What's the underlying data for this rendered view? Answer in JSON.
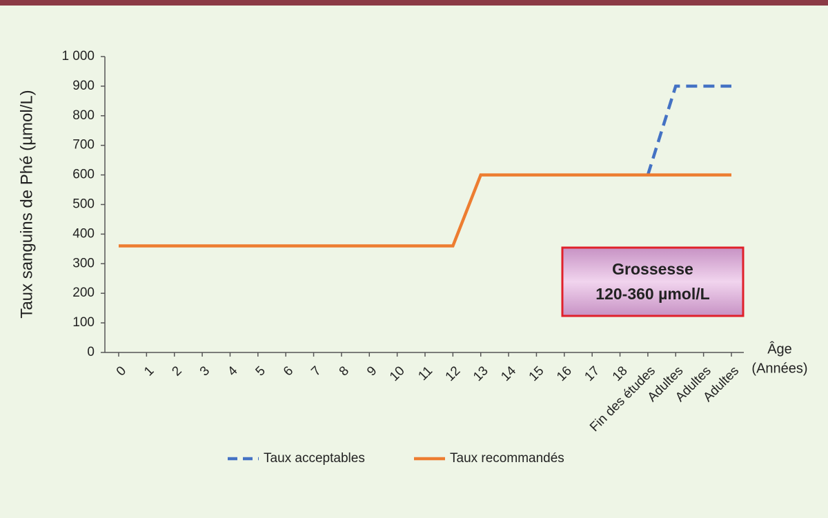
{
  "chart_data": {
    "type": "line",
    "ylabel": "Taux sanguins de Phé (µmol/L)",
    "xlabel_lines": [
      "Âge",
      "(Années)"
    ],
    "categories": [
      "0",
      "1",
      "2",
      "3",
      "4",
      "5",
      "6",
      "7",
      "8",
      "9",
      "10",
      "11",
      "12",
      "13",
      "14",
      "15",
      "16",
      "17",
      "18",
      "Fin des études",
      "Adultes",
      "Adultes",
      "Adultes"
    ],
    "series": [
      {
        "name": "Taux acceptables",
        "color": "#4472c4",
        "style": "dashed",
        "values": [
          null,
          null,
          null,
          null,
          null,
          null,
          null,
          null,
          null,
          null,
          null,
          null,
          null,
          null,
          null,
          null,
          null,
          null,
          null,
          600,
          900,
          900,
          900
        ]
      },
      {
        "name": "Taux recommandés",
        "color": "#ed7d31",
        "style": "solid",
        "values": [
          360,
          360,
          360,
          360,
          360,
          360,
          360,
          360,
          360,
          360,
          360,
          360,
          360,
          600,
          600,
          600,
          600,
          600,
          600,
          600,
          600,
          600,
          600
        ]
      }
    ],
    "ylim": [
      0,
      1000
    ],
    "yticks": [
      0,
      100,
      200,
      300,
      400,
      500,
      600,
      700,
      800,
      900,
      {
        "value": 1000,
        "label": "1 000"
      }
    ],
    "grid": false,
    "legend": "bottom",
    "annotation_lines": [
      "Grossesse",
      "120-360 µmol/L"
    ]
  }
}
